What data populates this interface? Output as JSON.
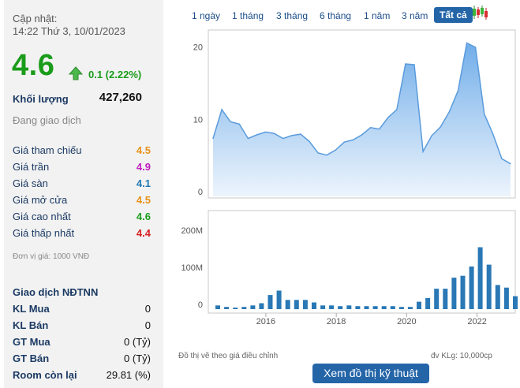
{
  "summary": {
    "updated_label": "Cập nhật:",
    "updated_time": "14:22 Thứ 3, 10/01/2023",
    "price": "4.6",
    "change": "0.1 (2.22%)",
    "volume_label": "Khối lượng",
    "volume_value": "427,260",
    "status": "Đang giao dịch"
  },
  "ref_prices": [
    {
      "label": "Giá tham chiếu",
      "value": "4.5",
      "color": "#e8921a"
    },
    {
      "label": "Giá trần",
      "value": "4.9",
      "color": "#c01fc0"
    },
    {
      "label": "Giá sàn",
      "value": "4.1",
      "color": "#1f78b4"
    },
    {
      "label": "Giá mở cửa",
      "value": "4.5",
      "color": "#e8921a"
    },
    {
      "label": "Giá cao nhất",
      "value": "4.6",
      "color": "#1a9c1a"
    },
    {
      "label": "Giá thấp nhất",
      "value": "4.4",
      "color": "#d62020"
    }
  ],
  "unit_note": "Đơn vị giá: 1000 VNĐ",
  "foreign": {
    "title": "Giao dịch NĐTNN",
    "rows": [
      {
        "label": "KL Mua",
        "value": "0"
      },
      {
        "label": "KL Bán",
        "value": "0"
      },
      {
        "label": "GT Mua",
        "value": "0 (Tỷ)"
      },
      {
        "label": "GT Bán",
        "value": "0 (Tỷ)"
      },
      {
        "label": "Room còn lại",
        "value": "29.81 (%)"
      }
    ]
  },
  "tabs": [
    "1 ngày",
    "1 tháng",
    "3 tháng",
    "6 tháng",
    "1 năm",
    "3 năm",
    "Tất cả"
  ],
  "active_tab": "Tất cả",
  "notes": {
    "left": "Đồ thị vẽ theo giá điều chỉnh",
    "right": "đv KLg: 10,000cp"
  },
  "button_label": "Xem đồ thị kỹ thuật",
  "chart_data": [
    {
      "type": "area",
      "series": [
        {
          "values": [
            8,
            12,
            10.3,
            10,
            8,
            8.5,
            8.9,
            8.7,
            8,
            8.4,
            8.6,
            7.6,
            6,
            5.7,
            6.4,
            7.5,
            7.8,
            8.5,
            9.5,
            9.3,
            10.9,
            12,
            18.3,
            18.2,
            6.2,
            8.4,
            9.6,
            11.7,
            14.6,
            21.2,
            20.6,
            11.4,
            8.6,
            5.2,
            4.5
          ]
        }
      ],
      "x_range": [
        2014.5,
        2022.95
      ],
      "ylim": [
        0,
        23
      ],
      "yticks": [
        0,
        10,
        20
      ],
      "grid": false
    },
    {
      "type": "bar",
      "series": [
        {
          "values": [
            10,
            6,
            4,
            6,
            10,
            16,
            38,
            50,
            25,
            25,
            25,
            18,
            10,
            10,
            8,
            10,
            8,
            8,
            8,
            8,
            8,
            6,
            6,
            20,
            30,
            55,
            55,
            85,
            90,
            115,
            167,
            120,
            65,
            58,
            35
          ]
        }
      ],
      "x_range": [
        2014.5,
        2022.95
      ],
      "xticks": [
        2016,
        2018,
        2020,
        2022
      ],
      "yticks": [
        0,
        100,
        200
      ],
      "ytick_labels": [
        "0",
        "100M",
        "200M"
      ],
      "ylim": [
        0,
        200
      ]
    }
  ]
}
